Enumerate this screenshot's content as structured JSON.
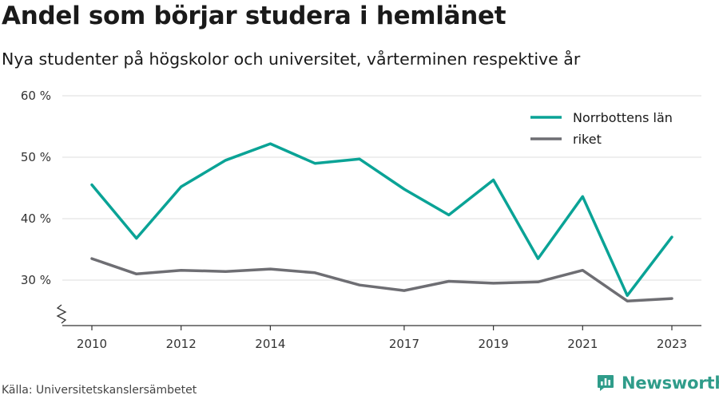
{
  "title": "Andel som börjar studera i hemlänet",
  "subtitle": "Nya studenter på högskolor och universitet, vårterminen respektive år",
  "source": "Källa: Universitetskanslersämbetet",
  "brand": {
    "name": "Newsworthy",
    "icon": "newsworthy-logo-icon",
    "color": "#2f9c8a"
  },
  "chart_data": {
    "type": "line",
    "title": "Andel som börjar studera i hemlänet",
    "subtitle": "Nya studenter på högskolor och universitet, vårterminen respektive år",
    "x": [
      2010,
      2011,
      2012,
      2013,
      2014,
      2015,
      2016,
      2017,
      2018,
      2019,
      2020,
      2021,
      2022,
      2023
    ],
    "x_ticks": [
      2010,
      2012,
      2014,
      2017,
      2019,
      2021,
      2023
    ],
    "x_tick_labels": [
      "2010",
      "2012",
      "2014",
      "2017",
      "2019",
      "2021",
      "2023"
    ],
    "y_ticks": [
      30,
      40,
      50,
      60
    ],
    "y_tick_labels": [
      "30 %",
      "40 %",
      "50 %",
      "60 %"
    ],
    "ylim": [
      23,
      60
    ],
    "y_axis_break": true,
    "grid": "horizontal",
    "legend_position": "top-right",
    "series": [
      {
        "name": "Norrbottens län",
        "color": "#0aa396",
        "values": [
          45.5,
          36.8,
          45.2,
          49.5,
          52.2,
          49.0,
          49.7,
          44.8,
          40.6,
          46.3,
          33.5,
          43.6,
          27.5,
          37.0
        ]
      },
      {
        "name": "riket",
        "color": "#6e6e73",
        "values": [
          33.5,
          31.0,
          31.6,
          31.4,
          31.8,
          31.2,
          29.2,
          28.3,
          29.8,
          29.5,
          29.7,
          31.6,
          26.6,
          27.0
        ]
      }
    ]
  }
}
